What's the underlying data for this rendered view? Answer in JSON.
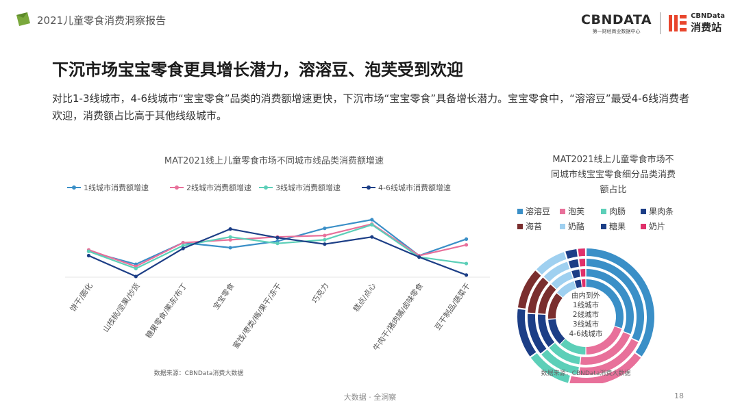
{
  "header": {
    "doc_title": "2021儿童零食消费洞察报告",
    "brand_cbn": "CBNDATA",
    "brand_cbn_sub": "第一财经商业数据中心",
    "brand_xf_en": "CBNData",
    "brand_xf_cn": "消费站"
  },
  "page_title": "下沉市场宝宝零食更具增长潜力，溶溶豆、泡芙受到欢迎",
  "intro_text": "对比1-3线城市，4-6线城市“宝宝零食”品类的消费额增速更快，下沉市场“宝宝零食”具备增长潜力。宝宝零食中，“溶溶豆”最受4-6线消费者欢迎，消费额占比高于其他线级城市。",
  "footer": {
    "center": "大数据 · 全洞察",
    "page": "18"
  },
  "colors": {
    "tier1": "#3a8fc7",
    "tier2": "#e8709a",
    "tier3": "#5ccfb8",
    "tier46": "#1c3e86"
  },
  "chart_data": [
    {
      "type": "line",
      "title": "MAT2021线上儿童零食市场不同城市线品类消费额增速",
      "source": "数据来源：CBNData消费大数据",
      "categories": [
        "饼干/膨化",
        "山核桃/坚果/炒货",
        "糖果零食/果冻/布丁",
        "宝宝零食",
        "蜜饯/枣类/梅/果干/冻干",
        "巧克力",
        "糕点/点心",
        "牛肉干/猪肉脯/卤味零食",
        "豆干制品/蔬菜干"
      ],
      "series": [
        {
          "name": "1线城市消费额增速",
          "color": "#3a8fc7",
          "values": [
            0.36,
            0.18,
            0.48,
            0.41,
            0.5,
            0.68,
            0.8,
            0.3,
            0.53
          ]
        },
        {
          "name": "2线城市消费额增速",
          "color": "#e8709a",
          "values": [
            0.38,
            0.15,
            0.48,
            0.52,
            0.56,
            0.58,
            0.74,
            0.3,
            0.45
          ]
        },
        {
          "name": "3线城市消费额增速",
          "color": "#5ccfb8",
          "values": [
            0.36,
            0.12,
            0.44,
            0.56,
            0.47,
            0.52,
            0.73,
            0.28,
            0.19
          ]
        },
        {
          "name": "4-6线城市消费额增速",
          "color": "#1c3e86",
          "values": [
            0.3,
            0.01,
            0.4,
            0.67,
            0.55,
            0.46,
            0.56,
            0.28,
            0.03
          ]
        }
      ]
    },
    {
      "type": "pie",
      "title_lines": [
        "MAT2021线上儿童零食市场不",
        "同城市线宝宝零食细分品类消费",
        "额占比"
      ],
      "source": "数据来源：CBNData消费大数据",
      "center_lines": [
        "由内到外",
        "1线城市",
        "2线城市",
        "3线城市",
        "4-6线城市"
      ],
      "categories": [
        "溶溶豆",
        "泡芙",
        "肉肠",
        "果肉条",
        "海苔",
        "奶酪",
        "糖果",
        "奶片"
      ],
      "colors": [
        "#3a8fc7",
        "#e8709a",
        "#5ccfb8",
        "#1c3e86",
        "#7a2e2e",
        "#9fd0f0",
        "#1c3e86",
        "#e0306a"
      ],
      "rings": [
        {
          "name": "1线城市",
          "values": [
            0.3,
            0.2,
            0.12,
            0.12,
            0.12,
            0.09,
            0.03,
            0.02
          ]
        },
        {
          "name": "2线城市",
          "values": [
            0.31,
            0.21,
            0.12,
            0.12,
            0.11,
            0.08,
            0.03,
            0.02
          ]
        },
        {
          "name": "3线城市",
          "values": [
            0.32,
            0.2,
            0.12,
            0.12,
            0.11,
            0.08,
            0.03,
            0.02
          ]
        },
        {
          "name": "4-6线城市",
          "values": [
            0.35,
            0.19,
            0.11,
            0.12,
            0.1,
            0.08,
            0.03,
            0.02
          ]
        }
      ]
    }
  ]
}
